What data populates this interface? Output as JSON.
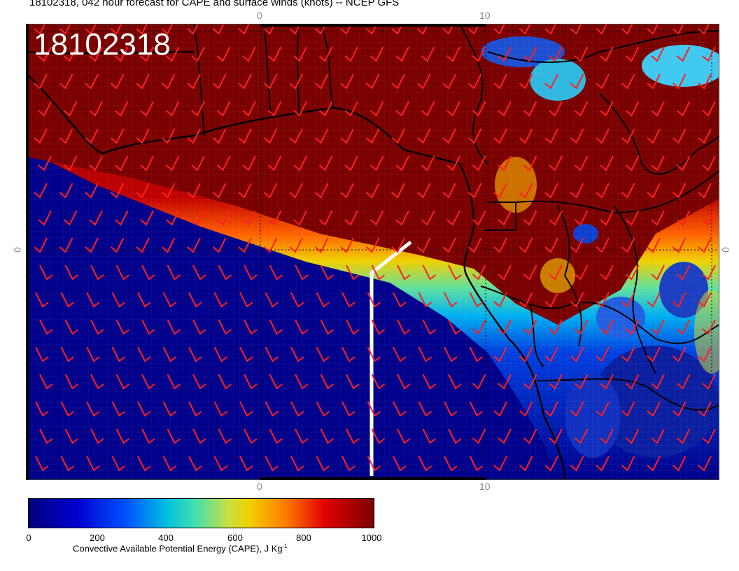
{
  "header": {
    "title": "18102318, 042 hour forecast for CAPE and surface winds (knots) -- NCEP GFS"
  },
  "map": {
    "stamp": "18102318"
  },
  "axes": {
    "top_ticks": [
      "0",
      "10"
    ],
    "bottom_ticks": [
      "0",
      "10"
    ],
    "left_ticks": [
      "0"
    ],
    "right_ticks": [
      "0"
    ]
  },
  "colorbar": {
    "labels": [
      "0",
      "200",
      "400",
      "600",
      "800",
      "1000"
    ],
    "title": "Convective Available Potential Energy (CAPE), J Kg",
    "title_sup": "-1"
  },
  "colors": {
    "wind_barb": "#ff2020",
    "coastline": "#000000",
    "high_cape": "#7a0000",
    "low_cape": "#00008b",
    "track": "#ffffff"
  }
}
